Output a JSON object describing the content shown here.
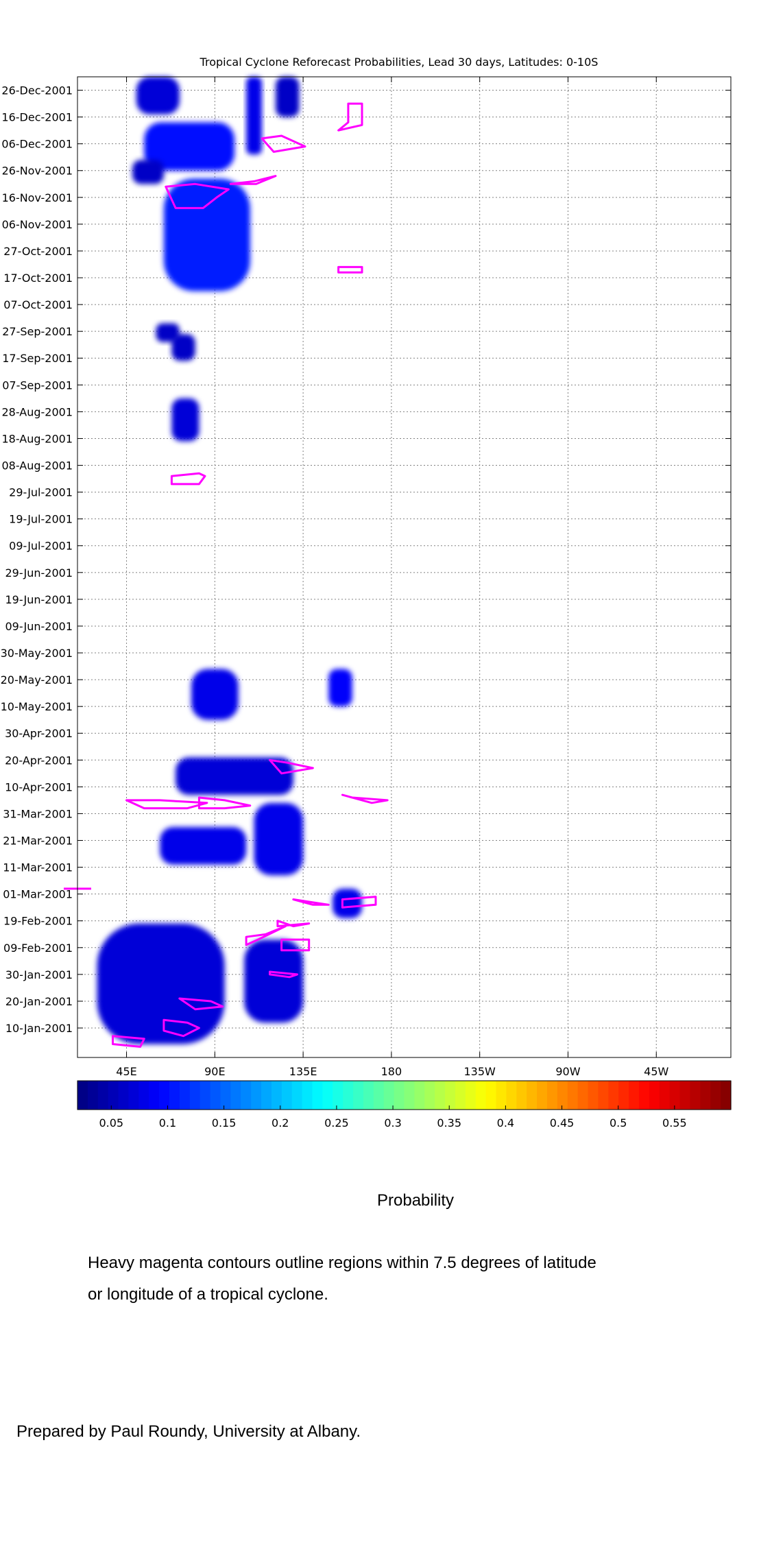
{
  "chart_data": {
    "type": "heatmap",
    "title": "Tropical Cyclone Reforecast Probabilities, Lead 30 days, Latitudes: 0-10S",
    "x_ticks": [
      {
        "lon": 45,
        "label": "45E"
      },
      {
        "lon": 90,
        "label": "90E"
      },
      {
        "lon": 135,
        "label": "135E"
      },
      {
        "lon": 180,
        "label": "180"
      },
      {
        "lon": 225,
        "label": "135W"
      },
      {
        "lon": 270,
        "label": "90W"
      },
      {
        "lon": 315,
        "label": "45W"
      }
    ],
    "xlim": [
      20,
      353
    ],
    "y_ticks": [
      {
        "date": "2001-12-26",
        "label": "26-Dec-2001"
      },
      {
        "date": "2001-12-16",
        "label": "16-Dec-2001"
      },
      {
        "date": "2001-12-06",
        "label": "06-Dec-2001"
      },
      {
        "date": "2001-11-26",
        "label": "26-Nov-2001"
      },
      {
        "date": "2001-11-16",
        "label": "16-Nov-2001"
      },
      {
        "date": "2001-11-06",
        "label": "06-Nov-2001"
      },
      {
        "date": "2001-10-27",
        "label": "27-Oct-2001"
      },
      {
        "date": "2001-10-17",
        "label": "17-Oct-2001"
      },
      {
        "date": "2001-10-07",
        "label": "07-Oct-2001"
      },
      {
        "date": "2001-09-27",
        "label": "27-Sep-2001"
      },
      {
        "date": "2001-09-17",
        "label": "17-Sep-2001"
      },
      {
        "date": "2001-09-07",
        "label": "07-Sep-2001"
      },
      {
        "date": "2001-08-28",
        "label": "28-Aug-2001"
      },
      {
        "date": "2001-08-18",
        "label": "18-Aug-2001"
      },
      {
        "date": "2001-08-08",
        "label": "08-Aug-2001"
      },
      {
        "date": "2001-07-29",
        "label": "29-Jul-2001"
      },
      {
        "date": "2001-07-19",
        "label": "19-Jul-2001"
      },
      {
        "date": "2001-07-09",
        "label": "09-Jul-2001"
      },
      {
        "date": "2001-06-29",
        "label": "29-Jun-2001"
      },
      {
        "date": "2001-06-19",
        "label": "19-Jun-2001"
      },
      {
        "date": "2001-06-09",
        "label": "09-Jun-2001"
      },
      {
        "date": "2001-05-30",
        "label": "30-May-2001"
      },
      {
        "date": "2001-05-20",
        "label": "20-May-2001"
      },
      {
        "date": "2001-05-10",
        "label": "10-May-2001"
      },
      {
        "date": "2001-04-30",
        "label": "30-Apr-2001"
      },
      {
        "date": "2001-04-20",
        "label": "20-Apr-2001"
      },
      {
        "date": "2001-04-10",
        "label": "10-Apr-2001"
      },
      {
        "date": "2001-03-31",
        "label": "31-Mar-2001"
      },
      {
        "date": "2001-03-21",
        "label": "21-Mar-2001"
      },
      {
        "date": "2001-03-11",
        "label": "11-Mar-2001"
      },
      {
        "date": "2001-03-01",
        "label": "01-Mar-2001"
      },
      {
        "date": "2001-02-19",
        "label": "19-Feb-2001"
      },
      {
        "date": "2001-02-09",
        "label": "09-Feb-2001"
      },
      {
        "date": "2001-01-30",
        "label": "30-Jan-2001"
      },
      {
        "date": "2001-01-20",
        "label": "20-Jan-2001"
      },
      {
        "date": "2001-01-10",
        "label": "10-Jan-2001"
      }
    ],
    "ylim": [
      "2000-12-30",
      "2001-12-31"
    ],
    "grid": true,
    "colorbar": {
      "label": "Probability",
      "range": [
        0.02,
        0.6
      ],
      "ticks": [
        0.05,
        0.1,
        0.15,
        0.2,
        0.25,
        0.3,
        0.35,
        0.4,
        0.45,
        0.5,
        0.55
      ],
      "tick_labels": [
        "0.05",
        "0.1",
        "0.15",
        "0.2",
        "0.25",
        "0.3",
        "0.35",
        "0.4",
        "0.45",
        "0.5",
        "0.55"
      ],
      "colormap": "jet"
    },
    "probability_regions": [
      {
        "lon": [
          50,
          72
        ],
        "dates": [
          "2001-12-17",
          "2001-12-31"
        ],
        "p": 0.07
      },
      {
        "lon": [
          106,
          114
        ],
        "dates": [
          "2001-12-02",
          "2001-12-31"
        ],
        "p": 0.08
      },
      {
        "lon": [
          121,
          133
        ],
        "dates": [
          "2001-12-16",
          "2001-12-31"
        ],
        "p": 0.06
      },
      {
        "lon": [
          54,
          100
        ],
        "dates": [
          "2001-11-26",
          "2001-12-14"
        ],
        "p": 0.1
      },
      {
        "lon": [
          48,
          64
        ],
        "dates": [
          "2001-11-21",
          "2001-11-30"
        ],
        "p": 0.06
      },
      {
        "lon": [
          64,
          108
        ],
        "dates": [
          "2001-10-12",
          "2001-11-23"
        ],
        "p": 0.11
      },
      {
        "lon": [
          60,
          72
        ],
        "dates": [
          "2001-09-23",
          "2001-09-30"
        ],
        "p": 0.06
      },
      {
        "lon": [
          68,
          80
        ],
        "dates": [
          "2001-09-16",
          "2001-09-26"
        ],
        "p": 0.06
      },
      {
        "lon": [
          68,
          82
        ],
        "dates": [
          "2001-08-17",
          "2001-09-02"
        ],
        "p": 0.07
      },
      {
        "lon": [
          78,
          102
        ],
        "dates": [
          "2001-05-05",
          "2001-05-24"
        ],
        "p": 0.08
      },
      {
        "lon": [
          148,
          160
        ],
        "dates": [
          "2001-05-10",
          "2001-05-24"
        ],
        "p": 0.09
      },
      {
        "lon": [
          70,
          130
        ],
        "dates": [
          "2001-04-07",
          "2001-04-21"
        ],
        "p": 0.07
      },
      {
        "lon": [
          110,
          135
        ],
        "dates": [
          "2001-03-08",
          "2001-04-04"
        ],
        "p": 0.08
      },
      {
        "lon": [
          62,
          106
        ],
        "dates": [
          "2001-03-12",
          "2001-03-26"
        ],
        "p": 0.08
      },
      {
        "lon": [
          150,
          165
        ],
        "dates": [
          "2001-02-20",
          "2001-03-03"
        ],
        "p": 0.08
      },
      {
        "lon": [
          30,
          95
        ],
        "dates": [
          "2001-01-04",
          "2001-02-18"
        ],
        "p": 0.07
      },
      {
        "lon": [
          105,
          135
        ],
        "dates": [
          "2001-01-12",
          "2001-02-12"
        ],
        "p": 0.07
      }
    ],
    "contour_note": "Heavy magenta contours outline regions within 7.5 degrees of latitude or longitude of a tropical cyclone.",
    "cyclone_contours": [
      [
        [
          153,
          "2001-12-11"
        ],
        [
          165,
          "2001-12-13"
        ],
        [
          165,
          "2001-12-21"
        ],
        [
          158,
          "2001-12-21"
        ],
        [
          158,
          "2001-12-14"
        ]
      ],
      [
        [
          114,
          "2001-12-08"
        ],
        [
          124,
          "2001-12-09"
        ],
        [
          136,
          "2001-12-05"
        ],
        [
          120,
          "2001-12-03"
        ]
      ],
      [
        [
          65,
          "2001-11-20"
        ],
        [
          80,
          "2001-11-21"
        ],
        [
          97,
          "2001-11-19"
        ],
        [
          91,
          "2001-11-16"
        ],
        [
          84,
          "2001-11-12"
        ],
        [
          70,
          "2001-11-12"
        ]
      ],
      [
        [
          98,
          "2001-11-21"
        ],
        [
          110,
          "2001-11-22"
        ],
        [
          121,
          "2001-11-24"
        ],
        [
          111,
          "2001-11-21"
        ]
      ],
      [
        [
          153,
          "2001-10-21"
        ],
        [
          165,
          "2001-10-21"
        ],
        [
          165,
          "2001-10-19"
        ],
        [
          153,
          "2001-10-19"
        ]
      ],
      [
        [
          68,
          "2001-08-04"
        ],
        [
          82,
          "2001-08-05"
        ],
        [
          85,
          "2001-08-04"
        ],
        [
          82,
          "2001-08-01"
        ],
        [
          68,
          "2001-08-01"
        ]
      ],
      [
        [
          118,
          "2001-04-20"
        ],
        [
          127,
          "2001-04-19"
        ],
        [
          140,
          "2001-04-17"
        ],
        [
          124,
          "2001-04-15"
        ]
      ],
      [
        [
          155,
          "2001-04-07"
        ],
        [
          170,
          "2001-04-04"
        ],
        [
          178,
          "2001-04-05"
        ],
        [
          160,
          "2001-04-06"
        ]
      ],
      [
        [
          45,
          "2001-04-05"
        ],
        [
          62,
          "2001-04-05"
        ],
        [
          86,
          "2001-04-04"
        ],
        [
          76,
          "2001-04-02"
        ],
        [
          54,
          "2001-04-02"
        ]
      ],
      [
        [
          82,
          "2001-04-06"
        ],
        [
          95,
          "2001-04-05"
        ],
        [
          108,
          "2001-04-03"
        ],
        [
          95,
          "2001-04-02"
        ],
        [
          82,
          "2001-04-02"
        ]
      ],
      [
        [
          13,
          "2001-03-03"
        ],
        [
          27,
          "2001-03-03"
        ]
      ],
      [
        [
          130,
          "2001-02-27"
        ],
        [
          140,
          "2001-02-25"
        ],
        [
          148,
          "2001-02-25"
        ],
        [
          130,
          "2001-02-27"
        ]
      ],
      [
        [
          155,
          "2001-02-27"
        ],
        [
          172,
          "2001-02-28"
        ],
        [
          172,
          "2001-02-25"
        ],
        [
          155,
          "2001-02-24"
        ]
      ],
      [
        [
          122,
          "2001-02-19"
        ],
        [
          130,
          "2001-02-17"
        ],
        [
          138,
          "2001-02-18"
        ],
        [
          122,
          "2001-02-17"
        ]
      ],
      [
        [
          106,
          "2001-02-13"
        ],
        [
          116,
          "2001-02-14"
        ],
        [
          126,
          "2001-02-17"
        ],
        [
          112,
          "2001-02-12"
        ],
        [
          106,
          "2001-02-10"
        ]
      ],
      [
        [
          124,
          "2001-02-12"
        ],
        [
          138,
          "2001-02-12"
        ],
        [
          138,
          "2001-02-08"
        ],
        [
          124,
          "2001-02-08"
        ]
      ],
      [
        [
          118,
          "2001-01-31"
        ],
        [
          132,
          "2001-01-30"
        ],
        [
          128,
          "2001-01-29"
        ],
        [
          118,
          "2001-01-30"
        ]
      ],
      [
        [
          72,
          "2001-01-21"
        ],
        [
          88,
          "2001-01-20"
        ],
        [
          94,
          "2001-01-18"
        ],
        [
          80,
          "2001-01-17"
        ]
      ],
      [
        [
          64,
          "2001-01-13"
        ],
        [
          76,
          "2001-01-12"
        ],
        [
          82,
          "2001-01-10"
        ],
        [
          74,
          "2001-01-07"
        ],
        [
          64,
          "2001-01-09"
        ]
      ],
      [
        [
          38,
          "2001-01-07"
        ],
        [
          54,
          "2001-01-06"
        ],
        [
          52,
          "2001-01-03"
        ],
        [
          38,
          "2001-01-04"
        ]
      ]
    ]
  },
  "captions": {
    "colorbar_label": "Probability",
    "note_line1": "Heavy magenta contours outline regions within 7.5 degrees of latitude",
    "note_line2": "or longitude of a tropical cyclone.",
    "credit": "Prepared by Paul Roundy, University at Albany."
  },
  "colors": {
    "contour": "#ff00ff",
    "grid": "#808080",
    "background": "#ffffff"
  }
}
